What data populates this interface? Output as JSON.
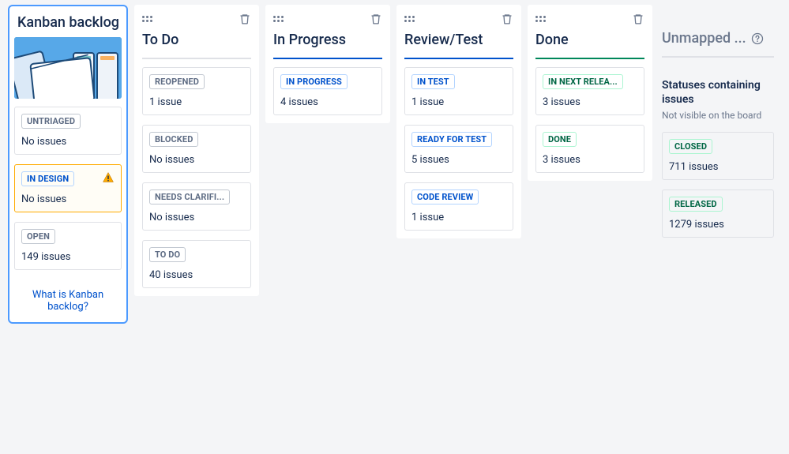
{
  "backlog": {
    "title": "Kanban backlog",
    "cards": [
      {
        "label": "UNTRIAGED",
        "count": "No issues",
        "badge_class": "badge-grey",
        "warn": false
      },
      {
        "label": "IN DESIGN",
        "count": "No issues",
        "badge_class": "badge-blue",
        "warn": true
      },
      {
        "label": "OPEN",
        "count": "149 issues",
        "badge_class": "badge-grey",
        "warn": false
      }
    ],
    "help_link": "What is Kanban backlog?"
  },
  "columns": [
    {
      "title": "To Do",
      "divider": "grey",
      "cards": [
        {
          "label": "REOPENED",
          "count": "1 issue",
          "badge_class": "badge-grey"
        },
        {
          "label": "BLOCKED",
          "count": "No issues",
          "badge_class": "badge-grey"
        },
        {
          "label": "NEEDS CLARIFI...",
          "count": "No issues",
          "badge_class": "badge-grey"
        },
        {
          "label": "TO DO",
          "count": "40 issues",
          "badge_class": "badge-grey"
        }
      ]
    },
    {
      "title": "In Progress",
      "divider": "blue",
      "cards": [
        {
          "label": "IN PROGRESS",
          "count": "4 issues",
          "badge_class": "badge-blue"
        }
      ]
    },
    {
      "title": "Review/Test",
      "divider": "blue",
      "cards": [
        {
          "label": "IN TEST",
          "count": "1 issue",
          "badge_class": "badge-blue"
        },
        {
          "label": "READY FOR TEST",
          "count": "5 issues",
          "badge_class": "badge-blue"
        },
        {
          "label": "CODE REVIEW",
          "count": "1 issue",
          "badge_class": "badge-blue"
        }
      ]
    },
    {
      "title": "Done",
      "divider": "green",
      "cards": [
        {
          "label": "IN NEXT RELEA...",
          "count": "3 issues",
          "badge_class": "badge-green"
        },
        {
          "label": "DONE",
          "count": "3 issues",
          "badge_class": "badge-green"
        }
      ]
    }
  ],
  "unmapped": {
    "title": "Unmapped ...",
    "heading": "Statuses containing issues",
    "subheading": "Not visible on the board",
    "cards": [
      {
        "label": "CLOSED",
        "count": "711 issues",
        "badge_class": "badge-green"
      },
      {
        "label": "RELEASED",
        "count": "1279 issues",
        "badge_class": "badge-green"
      }
    ]
  },
  "colors": {
    "blue": "#0052cc",
    "green": "#00875a",
    "grey_line": "#dfe1e6",
    "text": "#172B4D",
    "subtext": "#6b778c",
    "warn": "#ffab00"
  }
}
